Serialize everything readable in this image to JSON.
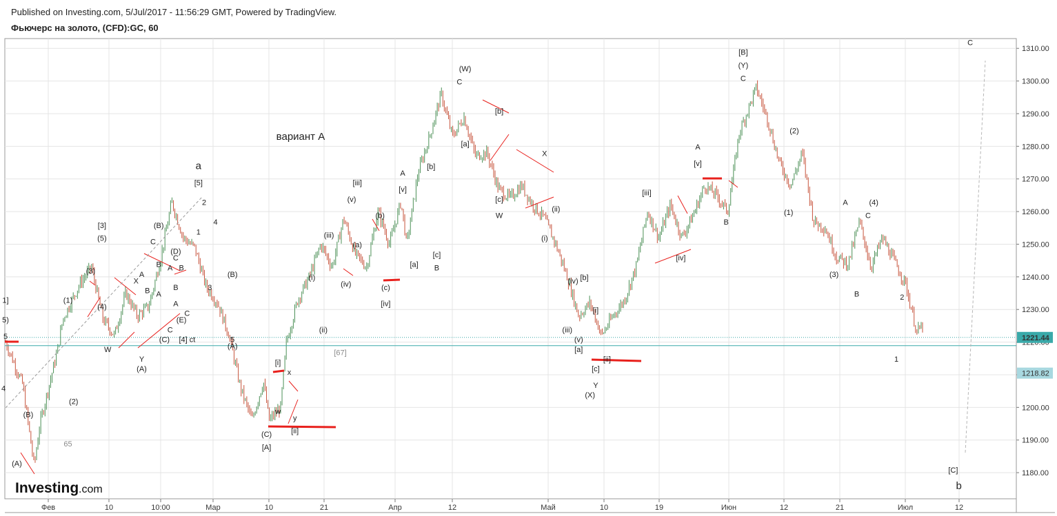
{
  "header": {
    "published": "Published on Investing.com, 5/Jul/2017 - 11:56:29 GMT, Powered by TradingView.",
    "title": "Фьючерс на золото, (CFD):GC, 60"
  },
  "logo": {
    "main": "Investing",
    "domain": ".com"
  },
  "colors": {
    "up": "#4a8f55",
    "down": "#c6523a",
    "annotation": "#e8201c",
    "grid": "#e4e4e4",
    "price_line": "#3aa9a9",
    "price_tag": "#3aa9a9",
    "level_tag": "#a8d8e0"
  },
  "chart_data": {
    "type": "candlestick",
    "instrument": "Фьючерс на золото, (CFD):GC, 60",
    "ylim": [
      1172,
      1313
    ],
    "y_ticks": [
      1180,
      1190,
      1200,
      1210,
      1220,
      1230,
      1240,
      1250,
      1260,
      1270,
      1280,
      1290,
      1300,
      1310
    ],
    "y_tick_labels": [
      "1180.00",
      "1190.00",
      "1200.00",
      "1210.00",
      "1220.00",
      "1230.00",
      "1240.00",
      "1250.00",
      "1260.00",
      "1270.00",
      "1280.00",
      "1290.00",
      "1300.00",
      "1310.00"
    ],
    "x_ticks": [
      "Фев",
      "10",
      "10:00",
      "Мар",
      "10",
      "21",
      "Апр",
      "12",
      "Май",
      "10",
      "19",
      "Июн",
      "12",
      "21",
      "Июл",
      "12"
    ],
    "last_price": 1221.44,
    "last_price_label": "1221.44",
    "level": 1218.82,
    "level_label": "1218.82",
    "price_path": [
      [
        0,
        1220
      ],
      [
        3,
        1207
      ],
      [
        5,
        1182
      ],
      [
        6,
        1195
      ],
      [
        9,
        1217
      ],
      [
        10,
        1227
      ],
      [
        13,
        1238
      ],
      [
        15,
        1243
      ],
      [
        17,
        1227
      ],
      [
        19,
        1222
      ],
      [
        21,
        1235
      ],
      [
        23,
        1228
      ],
      [
        25,
        1231
      ],
      [
        27,
        1245
      ],
      [
        29,
        1263
      ],
      [
        31,
        1252
      ],
      [
        33,
        1249
      ],
      [
        35,
        1237
      ],
      [
        37,
        1232
      ],
      [
        39,
        1222
      ],
      [
        41,
        1206
      ],
      [
        43,
        1196
      ],
      [
        45,
        1208
      ],
      [
        46,
        1196
      ],
      [
        48,
        1200
      ],
      [
        49,
        1220
      ],
      [
        51,
        1233
      ],
      [
        53,
        1240
      ],
      [
        55,
        1250
      ],
      [
        57,
        1243
      ],
      [
        59,
        1258
      ],
      [
        61,
        1247
      ],
      [
        63,
        1243
      ],
      [
        65,
        1260
      ],
      [
        67,
        1250
      ],
      [
        69,
        1263
      ],
      [
        70,
        1250
      ],
      [
        72,
        1272
      ],
      [
        74,
        1283
      ],
      [
        76,
        1296
      ],
      [
        78,
        1283
      ],
      [
        80,
        1289
      ],
      [
        82,
        1277
      ],
      [
        84,
        1278
      ],
      [
        86,
        1267
      ],
      [
        88,
        1264
      ],
      [
        90,
        1268
      ],
      [
        92,
        1262
      ],
      [
        94,
        1258
      ],
      [
        96,
        1250
      ],
      [
        98,
        1240
      ],
      [
        100,
        1228
      ],
      [
        102,
        1232
      ],
      [
        104,
        1222
      ],
      [
        106,
        1228
      ],
      [
        108,
        1233
      ],
      [
        110,
        1243
      ],
      [
        112,
        1260
      ],
      [
        114,
        1252
      ],
      [
        116,
        1262
      ],
      [
        118,
        1252
      ],
      [
        120,
        1259
      ],
      [
        122,
        1268
      ],
      [
        124,
        1265
      ],
      [
        126,
        1260
      ],
      [
        128,
        1284
      ],
      [
        131,
        1298
      ],
      [
        133,
        1288
      ],
      [
        135,
        1275
      ],
      [
        137,
        1268
      ],
      [
        139,
        1278
      ],
      [
        141,
        1257
      ],
      [
        143,
        1255
      ],
      [
        145,
        1246
      ],
      [
        147,
        1244
      ],
      [
        149,
        1257
      ],
      [
        151,
        1243
      ],
      [
        153,
        1252
      ],
      [
        155,
        1245
      ],
      [
        157,
        1238
      ],
      [
        159,
        1223
      ],
      [
        160,
        1225
      ]
    ],
    "annotations": [
      {
        "label": "a",
        "price": 1273,
        "bar": 34,
        "size": "big"
      },
      {
        "label": "вариант A",
        "price": 1282,
        "bar": 52,
        "size": "big"
      },
      {
        "label": "[5]",
        "price": 1268,
        "bar": 34
      },
      {
        "label": "2",
        "price": 1262,
        "bar": 35
      },
      {
        "label": "1",
        "price": 1253,
        "bar": 34
      },
      {
        "label": "4",
        "price": 1256,
        "bar": 37
      },
      {
        "label": "3",
        "price": 1236,
        "bar": 36
      },
      {
        "label": "(B)",
        "price": 1240,
        "bar": 40
      },
      {
        "label": "5",
        "price": 1220,
        "bar": 40
      },
      {
        "label": "(A)",
        "price": 1218,
        "bar": 40
      },
      {
        "label": "[3]",
        "price": 1255,
        "bar": 17
      },
      {
        "label": "(5)",
        "price": 1251,
        "bar": 17
      },
      {
        "label": "(3)",
        "price": 1241,
        "bar": 15
      },
      {
        "label": "(4)",
        "price": 1230,
        "bar": 17
      },
      {
        "label": "(1)",
        "price": 1232,
        "bar": 11
      },
      {
        "label": "(2)",
        "price": 1201,
        "bar": 12
      },
      {
        "label": "(B)",
        "price": 1197,
        "bar": 4
      },
      {
        "label": "(A)",
        "price": 1182,
        "bar": 2
      },
      {
        "label": "65",
        "price": 1188,
        "bar": 11,
        "color": "grey"
      },
      {
        "label": "(B)",
        "price": 1255,
        "bar": 27
      },
      {
        "label": "C",
        "price": 1250,
        "bar": 26
      },
      {
        "label": "(D)",
        "price": 1247,
        "bar": 30
      },
      {
        "label": "C",
        "price": 1245,
        "bar": 30
      },
      {
        "label": "B",
        "price": 1243,
        "bar": 27
      },
      {
        "label": "A",
        "price": 1242,
        "bar": 29
      },
      {
        "label": "B",
        "price": 1242,
        "bar": 31
      },
      {
        "label": "A",
        "price": 1240,
        "bar": 24
      },
      {
        "label": "X",
        "price": 1238,
        "bar": 23
      },
      {
        "label": "B",
        "price": 1235,
        "bar": 25
      },
      {
        "label": "A",
        "price": 1234,
        "bar": 27
      },
      {
        "label": "B",
        "price": 1236,
        "bar": 30
      },
      {
        "label": "A",
        "price": 1231,
        "bar": 30
      },
      {
        "label": "C",
        "price": 1228,
        "bar": 32
      },
      {
        "label": "(E)",
        "price": 1226,
        "bar": 31
      },
      {
        "label": "C",
        "price": 1223,
        "bar": 29
      },
      {
        "label": "(C)",
        "price": 1220,
        "bar": 28
      },
      {
        "label": "[4] ct",
        "price": 1220,
        "bar": 32
      },
      {
        "label": "W",
        "price": 1217,
        "bar": 18
      },
      {
        "label": "Y",
        "price": 1214,
        "bar": 24
      },
      {
        "label": "(A)",
        "price": 1211,
        "bar": 24
      },
      {
        "label": "[i]",
        "price": 1213,
        "bar": 48
      },
      {
        "label": "x",
        "price": 1210,
        "bar": 50
      },
      {
        "label": "w",
        "price": 1198,
        "bar": 48
      },
      {
        "label": "y",
        "price": 1196,
        "bar": 51
      },
      {
        "label": "(C)",
        "price": 1191,
        "bar": 46
      },
      {
        "label": "[A]",
        "price": 1187,
        "bar": 46
      },
      {
        "label": "[ii]",
        "price": 1192,
        "bar": 51
      },
      {
        "label": "[67]",
        "price": 1216,
        "bar": 59,
        "color": "grey"
      },
      {
        "label": "(i)",
        "price": 1239,
        "bar": 54
      },
      {
        "label": "(ii)",
        "price": 1223,
        "bar": 56
      },
      {
        "label": "(iii)",
        "price": 1252,
        "bar": 57
      },
      {
        "label": "(iv)",
        "price": 1237,
        "bar": 60
      },
      {
        "label": "[iii]",
        "price": 1268,
        "bar": 62
      },
      {
        "label": "(v)",
        "price": 1263,
        "bar": 61
      },
      {
        "label": "(a)",
        "price": 1249,
        "bar": 62
      },
      {
        "label": "(b)",
        "price": 1258,
        "bar": 66
      },
      {
        "label": "(c)",
        "price": 1236,
        "bar": 67
      },
      {
        "label": "[iv]",
        "price": 1231,
        "bar": 67
      },
      {
        "label": "A",
        "price": 1271,
        "bar": 70
      },
      {
        "label": "[v]",
        "price": 1266,
        "bar": 70
      },
      {
        "label": "[a]",
        "price": 1243,
        "bar": 72
      },
      {
        "label": "[c]",
        "price": 1246,
        "bar": 76
      },
      {
        "label": "B",
        "price": 1242,
        "bar": 76
      },
      {
        "label": "[b]",
        "price": 1273,
        "bar": 75
      },
      {
        "label": "(W)",
        "price": 1303,
        "bar": 81
      },
      {
        "label": "C",
        "price": 1299,
        "bar": 80
      },
      {
        "label": "[a]",
        "price": 1280,
        "bar": 81
      },
      {
        "label": "[b]",
        "price": 1290,
        "bar": 87
      },
      {
        "label": "X",
        "price": 1277,
        "bar": 95
      },
      {
        "label": "[c]",
        "price": 1263,
        "bar": 87
      },
      {
        "label": "W",
        "price": 1258,
        "bar": 87
      },
      {
        "label": "(ii)",
        "price": 1260,
        "bar": 97
      },
      {
        "label": "(i)",
        "price": 1251,
        "bar": 95
      },
      {
        "label": "(iv)",
        "price": 1238,
        "bar": 100
      },
      {
        "label": "[b]",
        "price": 1239,
        "bar": 102
      },
      {
        "label": "(iii)",
        "price": 1223,
        "bar": 99
      },
      {
        "label": "(v)",
        "price": 1220,
        "bar": 101
      },
      {
        "label": "[a]",
        "price": 1217,
        "bar": 101
      },
      {
        "label": "[i]",
        "price": 1229,
        "bar": 104
      },
      {
        "label": "[ii]",
        "price": 1214,
        "bar": 106
      },
      {
        "label": "[c]",
        "price": 1211,
        "bar": 104
      },
      {
        "label": "Y",
        "price": 1206,
        "bar": 104
      },
      {
        "label": "(X)",
        "price": 1203,
        "bar": 103
      },
      {
        "label": "[iii]",
        "price": 1265,
        "bar": 113
      },
      {
        "label": "[iv]",
        "price": 1245,
        "bar": 119
      },
      {
        "label": "A",
        "price": 1279,
        "bar": 122
      },
      {
        "label": "[v]",
        "price": 1274,
        "bar": 122
      },
      {
        "label": "B",
        "price": 1256,
        "bar": 127
      },
      {
        "label": "[B]",
        "price": 1308,
        "bar": 130
      },
      {
        "label": "(Y)",
        "price": 1304,
        "bar": 130
      },
      {
        "label": "C",
        "price": 1300,
        "bar": 130
      },
      {
        "label": "(2)",
        "price": 1284,
        "bar": 139
      },
      {
        "label": "(1)",
        "price": 1259,
        "bar": 138
      },
      {
        "label": "(3)",
        "price": 1240,
        "bar": 146
      },
      {
        "label": "A",
        "price": 1262,
        "bar": 148
      },
      {
        "label": "(4)",
        "price": 1262,
        "bar": 153
      },
      {
        "label": "C",
        "price": 1258,
        "bar": 152
      },
      {
        "label": "B",
        "price": 1234,
        "bar": 150
      },
      {
        "label": "2",
        "price": 1233,
        "bar": 158
      },
      {
        "label": "1",
        "price": 1214,
        "bar": 157
      },
      {
        "label": "C",
        "price": 1311,
        "bar": 170
      },
      {
        "label": "[C]",
        "price": 1180,
        "bar": 167
      },
      {
        "label": "b",
        "price": 1175,
        "bar": 168,
        "size": "big"
      },
      {
        "label": "1]",
        "price": 1232,
        "bar": 0
      },
      {
        "label": "5)",
        "price": 1226,
        "bar": 0
      },
      {
        "label": "5",
        "price": 1221,
        "bar": 0
      },
      {
        "label": "4",
        "price": 1205,
        "bar": -1
      }
    ]
  }
}
